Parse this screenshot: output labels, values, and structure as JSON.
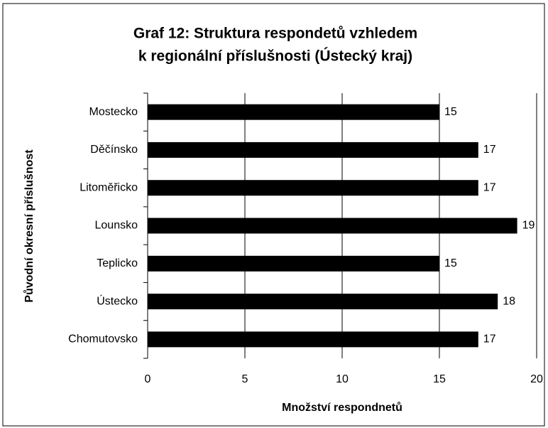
{
  "chart_data": {
    "type": "barh",
    "title": [
      "Graf 12: Struktura respondetů vzhledem",
      "k regionální příslušnosti (Ústecký kraj)"
    ],
    "xlabel": "Množství respondnetů",
    "ylabel": "Původní okresní příslušnost",
    "categories": [
      "Mostecko",
      "Děčínsko",
      "Litoměřicko",
      "Lounsko",
      "Teplicko",
      "Ústecko",
      "Chomutovsko"
    ],
    "values": [
      15,
      17,
      17,
      19,
      15,
      18,
      17
    ],
    "color": "#000000",
    "xlim": [
      0,
      20
    ],
    "xticks": [
      0,
      5,
      10,
      15,
      20
    ],
    "grid": true
  }
}
